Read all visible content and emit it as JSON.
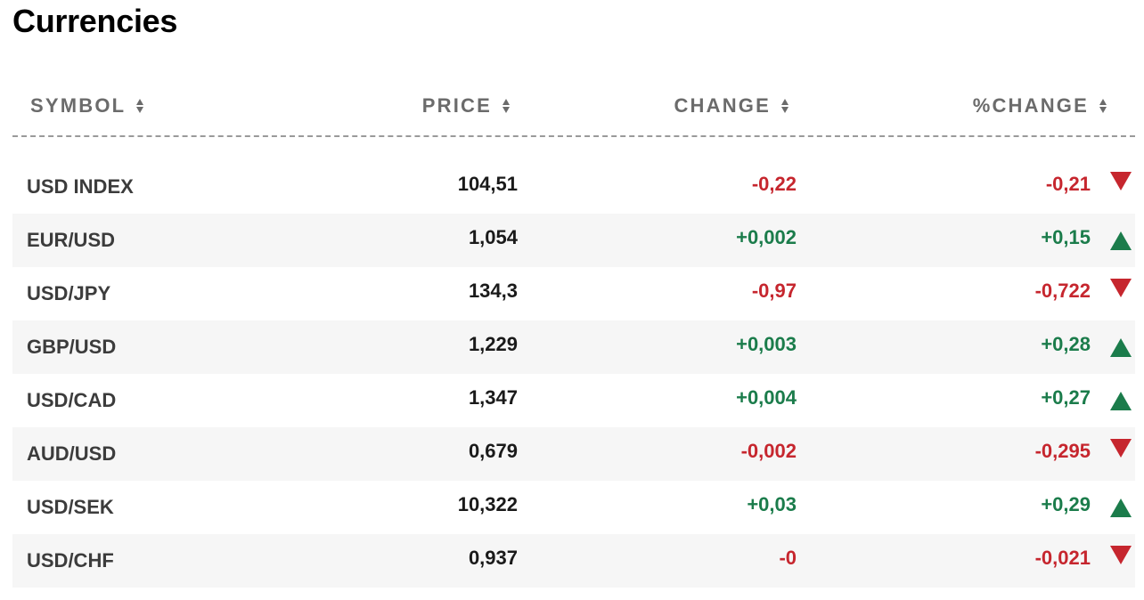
{
  "page": {
    "title": "Currencies"
  },
  "table": {
    "headers": {
      "symbol": "SYMBOL",
      "price": "PRICE",
      "change": "CHANGE",
      "pct_change": "%CHANGE"
    },
    "rows": [
      {
        "symbol": "USD INDEX",
        "price": "104,51",
        "change": "-0,22",
        "pct_change": "-0,21",
        "direction": "down"
      },
      {
        "symbol": "EUR/USD",
        "price": "1,054",
        "change": "+0,002",
        "pct_change": "+0,15",
        "direction": "up"
      },
      {
        "symbol": "USD/JPY",
        "price": "134,3",
        "change": "-0,97",
        "pct_change": "-0,722",
        "direction": "down"
      },
      {
        "symbol": "GBP/USD",
        "price": "1,229",
        "change": "+0,003",
        "pct_change": "+0,28",
        "direction": "up"
      },
      {
        "symbol": "USD/CAD",
        "price": "1,347",
        "change": "+0,004",
        "pct_change": "+0,27",
        "direction": "up"
      },
      {
        "symbol": "AUD/USD",
        "price": "0,679",
        "change": "-0,002",
        "pct_change": "-0,295",
        "direction": "down"
      },
      {
        "symbol": "USD/SEK",
        "price": "10,322",
        "change": "+0,03",
        "pct_change": "+0,29",
        "direction": "up"
      },
      {
        "symbol": "USD/CHF",
        "price": "0,937",
        "change": "-0",
        "pct_change": "-0,021",
        "direction": "down"
      }
    ]
  },
  "colors": {
    "positive": "#1b7c4b",
    "negative": "#c6262e",
    "header_text": "#6b6b6b",
    "row_stripe": "#f6f6f6"
  },
  "icons": {
    "sort": "sort-icon",
    "up": "triangle-up-icon",
    "down": "triangle-down-icon"
  }
}
